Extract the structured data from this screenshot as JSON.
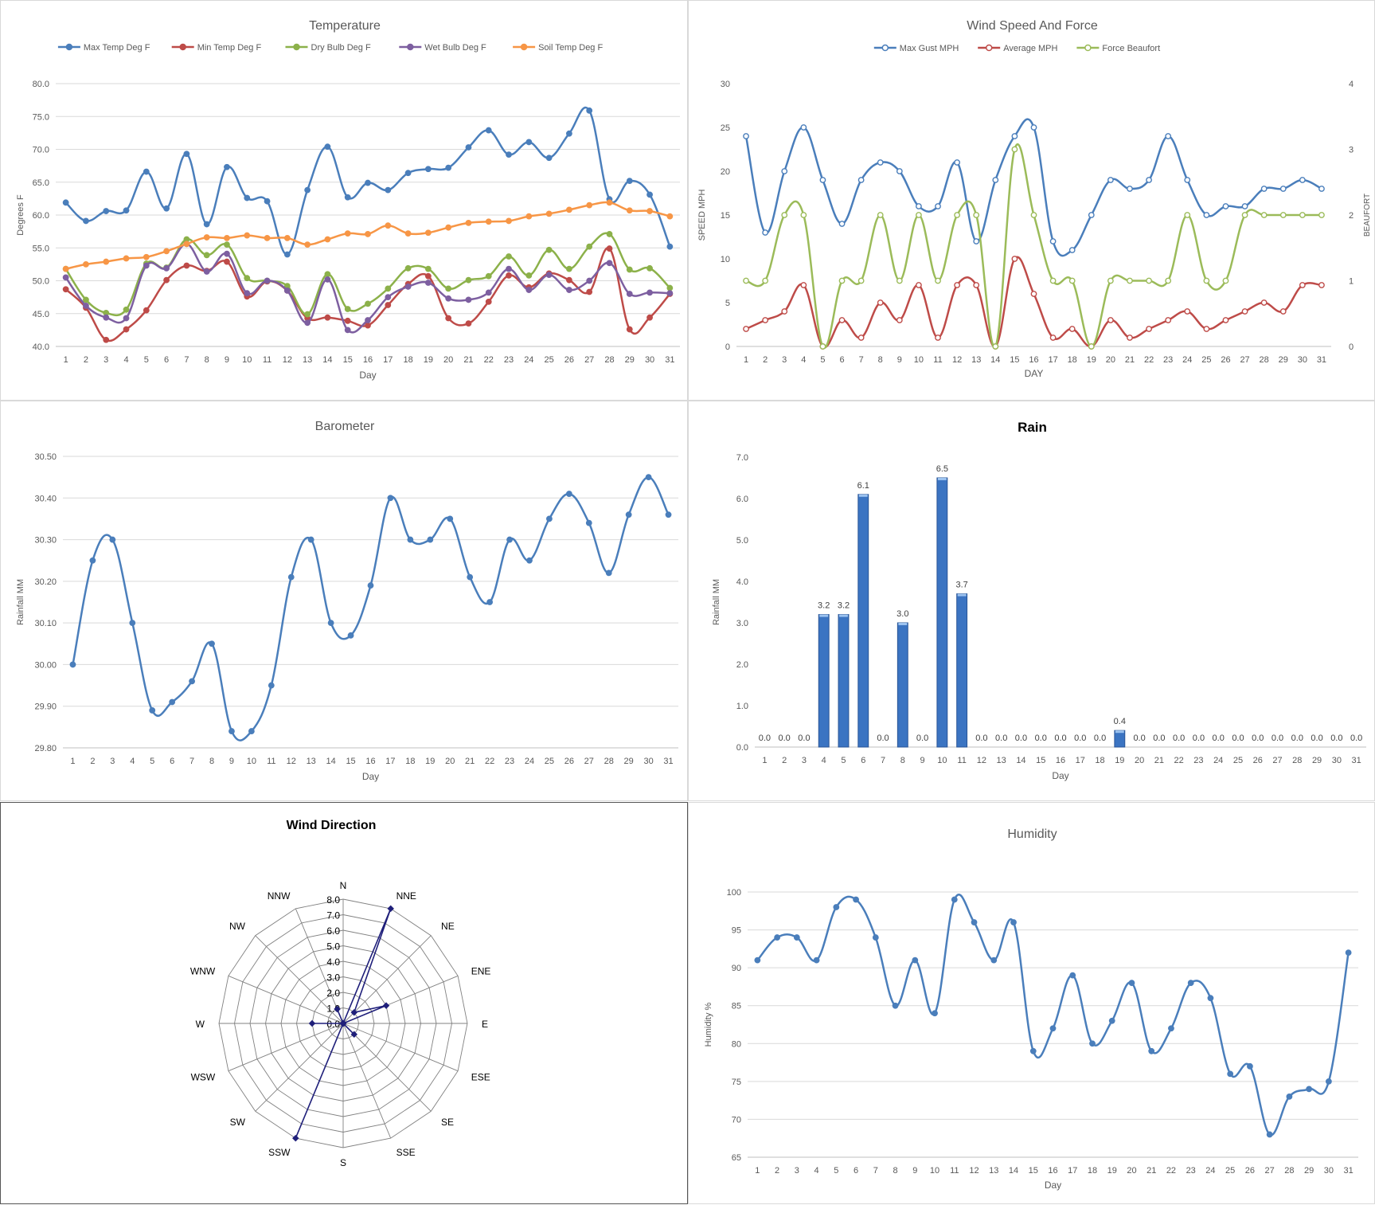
{
  "chart_data": [
    {
      "id": "temperature",
      "type": "line",
      "title": "Temperature",
      "xlabel": "Day",
      "ylabel": "Degrees F",
      "ylim": [
        40,
        80
      ],
      "ytick_step": 5,
      "tick_decimals": 1,
      "smooth": true,
      "grid": true,
      "legend": "top",
      "categories": [
        "1",
        "2",
        "3",
        "4",
        "5",
        "6",
        "7",
        "8",
        "9",
        "10",
        "11",
        "12",
        "13",
        "14",
        "15",
        "16",
        "17",
        "18",
        "19",
        "20",
        "21",
        "22",
        "23",
        "24",
        "25",
        "26",
        "27",
        "28",
        "29",
        "30",
        "31"
      ],
      "series": [
        {
          "name": "Max Temp Deg F",
          "color": "#4a7ebb",
          "values": [
            61.9,
            59.1,
            60.6,
            60.7,
            66.6,
            61.0,
            69.3,
            58.6,
            67.3,
            62.6,
            62.1,
            54.0,
            63.8,
            70.4,
            62.7,
            64.9,
            63.8,
            66.4,
            67.0,
            67.2,
            70.3,
            72.9,
            69.2,
            71.1,
            68.7,
            72.4,
            75.9,
            62.4,
            65.2,
            63.1,
            55.2
          ]
        },
        {
          "name": "Min Temp Deg F",
          "color": "#be4b48",
          "values": [
            48.7,
            45.9,
            41.0,
            42.6,
            45.5,
            50.1,
            52.3,
            51.5,
            52.9,
            47.6,
            49.9,
            48.5,
            44.3,
            44.4,
            43.9,
            43.2,
            46.3,
            49.5,
            50.7,
            44.3,
            43.5,
            46.8,
            50.8,
            49.0,
            51.1,
            50.1,
            48.3,
            54.9,
            42.6,
            44.4,
            48.0
          ]
        },
        {
          "name": "Dry Bulb Deg F",
          "color": "#8cb14a",
          "values": [
            51.8,
            47.1,
            45.1,
            45.6,
            52.6,
            52.0,
            56.3,
            53.9,
            55.5,
            50.4,
            50.0,
            49.2,
            44.9,
            51.0,
            45.7,
            46.5,
            48.8,
            51.9,
            51.8,
            48.8,
            50.1,
            50.7,
            53.7,
            50.8,
            54.7,
            51.8,
            55.2,
            57.1,
            51.7,
            51.9,
            48.9
          ]
        },
        {
          "name": "Wet Bulb Deg F",
          "color": "#7d5fa0",
          "values": [
            50.5,
            46.2,
            44.4,
            44.3,
            52.3,
            51.9,
            55.6,
            51.4,
            54.1,
            48.1,
            50.0,
            48.5,
            43.6,
            50.2,
            42.5,
            44.0,
            47.5,
            49.1,
            49.7,
            47.3,
            47.1,
            48.2,
            51.8,
            48.6,
            50.9,
            48.6,
            50.0,
            52.7,
            48.0,
            48.2,
            48.1
          ]
        },
        {
          "name": "Soil Temp Deg F",
          "color": "#f79646",
          "values": [
            51.8,
            52.5,
            52.9,
            53.4,
            53.6,
            54.5,
            55.6,
            56.6,
            56.5,
            56.9,
            56.5,
            56.5,
            55.5,
            56.3,
            57.2,
            57.1,
            58.4,
            57.2,
            57.3,
            58.1,
            58.8,
            59.0,
            59.1,
            59.8,
            60.2,
            60.8,
            61.5,
            61.9,
            60.7,
            60.6,
            59.8
          ]
        }
      ]
    },
    {
      "id": "wind",
      "type": "line",
      "title": "Wind Speed And Force",
      "xlabel": "DAY",
      "ylabel": "SPEED MPH",
      "y2label": "BEAUFORT",
      "ylim": [
        0,
        30
      ],
      "ytick_step": 5,
      "y2lim": [
        0,
        4
      ],
      "y2tick_step": 1,
      "tick_decimals": 0,
      "smooth": true,
      "grid": false,
      "legend": "top",
      "categories": [
        "1",
        "2",
        "3",
        "4",
        "5",
        "6",
        "7",
        "8",
        "9",
        "10",
        "11",
        "12",
        "13",
        "14",
        "15",
        "16",
        "17",
        "18",
        "19",
        "20",
        "21",
        "22",
        "23",
        "24",
        "25",
        "26",
        "27",
        "28",
        "29",
        "30",
        "31"
      ],
      "series": [
        {
          "name": "Max Gust MPH",
          "color": "#4a7ebb",
          "axis": "left",
          "values": [
            24,
            13,
            20,
            25,
            19,
            14,
            19,
            21,
            20,
            16,
            16,
            21,
            12,
            19,
            24,
            25,
            12,
            11,
            15,
            19,
            18,
            19,
            24,
            19,
            15,
            16,
            16,
            18,
            18,
            19,
            18
          ]
        },
        {
          "name": "Average MPH",
          "color": "#be4b48",
          "axis": "left",
          "values": [
            2,
            3,
            4,
            7,
            0,
            3,
            1,
            5,
            3,
            7,
            1,
            7,
            7,
            0,
            10,
            6,
            1,
            2,
            0,
            3,
            1,
            2,
            3,
            4,
            2,
            3,
            4,
            5,
            4,
            7,
            7
          ]
        },
        {
          "name": "Force Beaufort",
          "color": "#9bbb59",
          "axis": "right",
          "values": [
            1,
            1,
            2,
            2,
            0,
            1,
            1,
            2,
            1,
            2,
            1,
            2,
            2,
            0,
            3,
            2,
            1,
            1,
            0,
            1,
            1,
            1,
            1,
            2,
            1,
            1,
            2,
            2,
            2,
            2,
            2
          ]
        }
      ]
    },
    {
      "id": "barometer",
      "type": "line",
      "title": "Barometer",
      "xlabel": "Day",
      "ylabel": "Rainfall MM",
      "ylim": [
        29.8,
        30.5
      ],
      "ytick_step": 0.1,
      "tick_decimals": 2,
      "smooth": true,
      "grid": true,
      "categories": [
        "1",
        "2",
        "3",
        "4",
        "5",
        "6",
        "7",
        "8",
        "9",
        "10",
        "11",
        "12",
        "13",
        "14",
        "15",
        "16",
        "17",
        "18",
        "19",
        "20",
        "21",
        "22",
        "23",
        "24",
        "25",
        "26",
        "27",
        "28",
        "29",
        "30",
        "31"
      ],
      "series": [
        {
          "color": "#4a7ebb",
          "values": [
            30.0,
            30.25,
            30.3,
            30.1,
            29.89,
            29.91,
            29.96,
            30.05,
            29.84,
            29.84,
            29.95,
            30.21,
            30.3,
            30.1,
            30.07,
            30.19,
            30.4,
            30.3,
            30.3,
            30.35,
            30.21,
            30.15,
            30.3,
            30.25,
            30.35,
            30.41,
            30.34,
            30.22,
            30.36,
            30.45,
            30.36
          ]
        }
      ]
    },
    {
      "id": "rain",
      "type": "bar",
      "title": "Rain",
      "xlabel": "Day",
      "ylabel": "Rainfall MM",
      "ylim": [
        0,
        7
      ],
      "ytick_step": 1,
      "tick_decimals": 1,
      "grid": false,
      "categories": [
        "1",
        "2",
        "3",
        "4",
        "5",
        "6",
        "7",
        "8",
        "9",
        "10",
        "11",
        "12",
        "13",
        "14",
        "15",
        "16",
        "17",
        "18",
        "19",
        "20",
        "21",
        "22",
        "23",
        "24",
        "25",
        "26",
        "27",
        "28",
        "29",
        "30",
        "31"
      ],
      "values": [
        0.0,
        0.0,
        0.0,
        3.2,
        3.2,
        6.1,
        0.0,
        3.0,
        0.0,
        6.5,
        3.7,
        0.0,
        0.0,
        0.0,
        0.0,
        0.0,
        0.0,
        0.0,
        0.4,
        0.0,
        0.0,
        0.0,
        0.0,
        0.0,
        0.0,
        0.0,
        0.0,
        0.0,
        0.0,
        0.0,
        0.0
      ],
      "data_labels": [
        "0.0",
        "0.0",
        "0.0",
        "3.2",
        "3.2",
        "6.1",
        "0.0",
        "3.0",
        "0.0",
        "6.5",
        "3.7",
        "0.0",
        "0.0",
        "0.0",
        "0.0",
        "0.0",
        "0.0",
        "0.0",
        "0.4",
        "0.0",
        "0.0",
        "0.0",
        "0.0",
        "0.0",
        "0.0",
        "0.0",
        "0.0",
        "0.0",
        "0.0",
        "0.0",
        "0.0"
      ]
    },
    {
      "id": "wind_direction",
      "type": "radar",
      "title": "Wind Direction",
      "directions": [
        "N",
        "NNE",
        "NE",
        "ENE",
        "E",
        "ESE",
        "SE",
        "SSE",
        "S",
        "SSW",
        "SW",
        "WSW",
        "W",
        "WNW",
        "NW",
        "NNW"
      ],
      "values": [
        0,
        8,
        1,
        3,
        0,
        0,
        1,
        0,
        0,
        8,
        0,
        0,
        2,
        0,
        0,
        1
      ],
      "rlim": [
        0,
        8
      ],
      "rtick_step": 1,
      "tick_decimals": 1,
      "color": "#1f1f7a"
    },
    {
      "id": "humidity",
      "type": "line",
      "title": "Humidity",
      "xlabel": "Day",
      "ylabel": "Humidity  %",
      "ylim": [
        65,
        100
      ],
      "ytick_step": 5,
      "tick_decimals": 0,
      "smooth": true,
      "grid": true,
      "categories": [
        "1",
        "2",
        "3",
        "4",
        "5",
        "6",
        "7",
        "8",
        "9",
        "10",
        "11",
        "12",
        "13",
        "14",
        "15",
        "16",
        "17",
        "18",
        "19",
        "20",
        "21",
        "22",
        "23",
        "24",
        "25",
        "26",
        "27",
        "28",
        "29",
        "30",
        "31"
      ],
      "series": [
        {
          "color": "#4a7ebb",
          "values": [
            91,
            94,
            94,
            91,
            98,
            99,
            94,
            85,
            91,
            84,
            99,
            96,
            91,
            96,
            79,
            82,
            89,
            80,
            83,
            88,
            79,
            82,
            88,
            86,
            76,
            77,
            68,
            73,
            74,
            75,
            92
          ]
        }
      ]
    }
  ]
}
